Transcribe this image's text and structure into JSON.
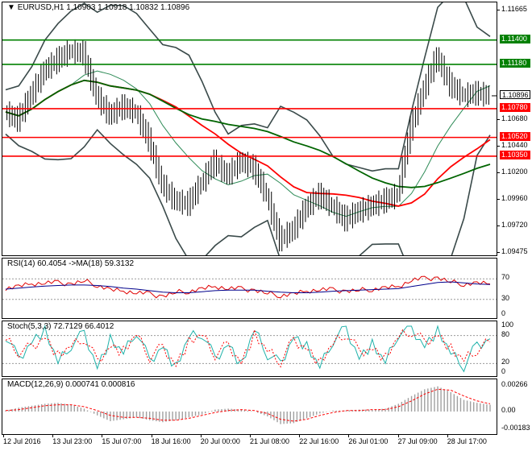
{
  "header": {
    "symbol": "EURUSD,H1",
    "ohlc": "1.10903 1.10918 1.10832 1.10896",
    "rsi_label": "RSI(14) 60.4054  ->MA(18) 59.3132",
    "stoch_label": "Stoch(5,3,3) 72.7129 66.4012",
    "macd_label": "MACD(12,26,9) 0.000741 0.000816"
  },
  "colors": {
    "support_resistance_green": "#008000",
    "support_resistance_red": "#ff0000",
    "bollinger": "#3a4a4a",
    "ma_slow": "#006400",
    "ma_mid": "#ff0000",
    "price": "#000000",
    "rsi": "#e00000",
    "rsi_ma": "#00008b",
    "stoch_main": "#20b2aa",
    "stoch_signal": "#ff0000",
    "macd_hist": "#a0a0a0",
    "macd_signal": "#ff0000",
    "current_price_tag": "#ffffff"
  },
  "chart_data": [
    {
      "type": "line",
      "name": "price",
      "yticks": [
        "1.11665",
        "1.11400",
        "1.11180",
        "1.10896",
        "1.10780",
        "1.10680",
        "1.10520",
        "1.10440",
        "1.10350",
        "1.10200",
        "1.09960",
        "1.09720",
        "1.09475"
      ],
      "ylim": [
        1.0944,
        1.1174
      ],
      "levels": [
        {
          "value": 1.114,
          "label": "1.11400",
          "color": "green"
        },
        {
          "value": 1.1118,
          "label": "1.11180",
          "color": "green"
        },
        {
          "value": 1.1078,
          "label": "1.10780",
          "color": "red"
        },
        {
          "value": 1.1052,
          "label": "1.10520",
          "color": "red"
        },
        {
          "value": 1.1035,
          "label": "1.10350",
          "color": "red"
        }
      ],
      "current_price": {
        "value": 1.10896,
        "label": "1.10896"
      },
      "x_categories": [
        "12 Jul 2016",
        "13 Jul 23:00",
        "15 Jul 07:00",
        "18 Jul 16:00",
        "20 Jul 00:00",
        "21 Jul 08:00",
        "22 Jul 16:00",
        "26 Jul 01:00",
        "27 Jul 09:00",
        "28 Jul 17:00"
      ],
      "close_series": [
        1.1075,
        1.1068,
        1.109,
        1.1112,
        1.1122,
        1.113,
        1.1128,
        1.109,
        1.1072,
        1.108,
        1.1075,
        1.105,
        1.101,
        1.0995,
        1.0992,
        1.101,
        1.103,
        1.1018,
        1.103,
        1.1025,
        1.1,
        1.096,
        1.0968,
        1.0988,
        1.1,
        1.099,
        1.0978,
        1.0985,
        1.099,
        1.0995,
        1.1,
        1.106,
        1.1095,
        1.1125,
        1.11,
        1.109,
        1.1092,
        1.109
      ]
    },
    {
      "type": "line",
      "name": "RSI",
      "yticks": [
        "70",
        "30",
        "0"
      ],
      "ylim": [
        0,
        100
      ],
      "rsi": [
        52,
        55,
        60,
        63,
        62,
        60,
        66,
        58,
        48,
        46,
        44,
        40,
        36,
        44,
        46,
        50,
        55,
        52,
        50,
        48,
        42,
        38,
        40,
        46,
        50,
        48,
        46,
        48,
        50,
        52,
        55,
        68,
        70,
        72,
        64,
        60,
        61,
        60
      ],
      "ma": [
        50,
        52,
        54,
        56,
        57,
        58,
        58,
        57,
        55,
        52,
        50,
        47,
        44,
        43,
        43,
        45,
        47,
        48,
        48,
        48,
        46,
        44,
        43,
        43,
        44,
        46,
        47,
        48,
        49,
        50,
        51,
        55,
        59,
        63,
        64,
        62,
        60,
        59
      ]
    },
    {
      "type": "line",
      "name": "Stochastic",
      "yticks": [
        "100",
        "80",
        "20",
        "0"
      ],
      "ylim": [
        0,
        100
      ],
      "main": [
        80,
        30,
        70,
        90,
        20,
        60,
        85,
        15,
        70,
        40,
        90,
        25,
        60,
        10,
        75,
        85,
        30,
        65,
        15,
        90,
        40,
        20,
        80,
        55,
        10,
        70,
        95,
        35,
        60,
        20,
        85,
        95,
        60,
        90,
        40,
        15,
        60,
        73
      ],
      "signal": [
        70,
        45,
        55,
        80,
        35,
        55,
        75,
        25,
        60,
        45,
        80,
        35,
        55,
        20,
        65,
        80,
        40,
        60,
        25,
        80,
        45,
        25,
        70,
        55,
        20,
        60,
        85,
        45,
        55,
        30,
        75,
        90,
        65,
        85,
        50,
        25,
        50,
        66
      ]
    },
    {
      "type": "bar",
      "name": "MACD",
      "yticks": [
        "0.00266",
        "0.00",
        "-0.00183"
      ],
      "ylim": [
        -0.00183,
        0.00266
      ],
      "hist": [
        0.0001,
        0.0004,
        0.0006,
        0.0008,
        0.0009,
        0.0007,
        0.0003,
        -0.0004,
        -0.001,
        -0.0008,
        -0.0006,
        -0.0009,
        -0.0011,
        -0.0009,
        -0.0006,
        -0.0003,
        0.0002,
        0.0003,
        0.0002,
        0.0,
        -0.0005,
        -0.0013,
        -0.0012,
        -0.0007,
        -0.0002,
        0.0001,
        0.0001,
        0.0002,
        0.0002,
        0.0003,
        0.0008,
        0.0016,
        0.0023,
        0.0026,
        0.002,
        0.0012,
        0.0009,
        0.0007
      ],
      "signal": [
        0.0001,
        0.0002,
        0.0004,
        0.0006,
        0.0007,
        0.0007,
        0.0005,
        0.0001,
        -0.0004,
        -0.0006,
        -0.0006,
        -0.0007,
        -0.0009,
        -0.0009,
        -0.0007,
        -0.0004,
        -0.0001,
        0.0001,
        0.0002,
        0.0001,
        -0.0002,
        -0.0008,
        -0.001,
        -0.0008,
        -0.0004,
        -0.0001,
        0.0001,
        0.0001,
        0.0002,
        0.0002,
        0.0005,
        0.0011,
        0.0018,
        0.0023,
        0.0022,
        0.0016,
        0.0011,
        0.0008
      ]
    }
  ]
}
